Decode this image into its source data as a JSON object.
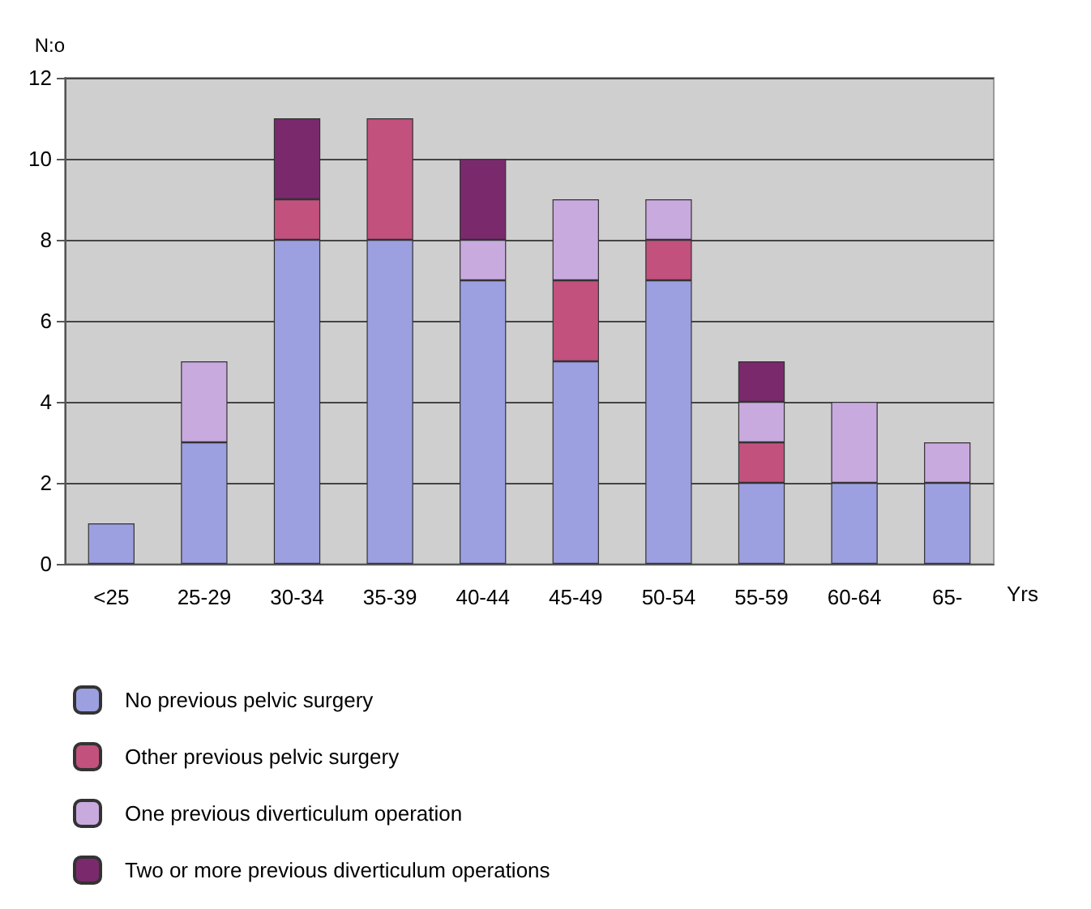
{
  "chart_data": {
    "type": "bar",
    "stacked": true,
    "ylabel": "N:o",
    "xlabel": "Yrs",
    "categories": [
      "<25",
      "25-29",
      "30-34",
      "35-39",
      "40-44",
      "45-49",
      "50-54",
      "55-59",
      "60-64",
      "65-"
    ],
    "series": [
      {
        "name": "No previous pelvic surgery",
        "color": "#9c9fe0",
        "values": [
          1,
          3,
          8,
          8,
          7,
          5,
          7,
          2,
          2,
          2
        ]
      },
      {
        "name": "Other previous pelvic surgery",
        "color": "#c2517e",
        "values": [
          0,
          0,
          1,
          3,
          0,
          2,
          1,
          1,
          0,
          0
        ]
      },
      {
        "name": "One previous diverticulum operation",
        "color": "#c9aadf",
        "values": [
          0,
          2,
          0,
          0,
          1,
          2,
          1,
          1,
          2,
          1
        ]
      },
      {
        "name": "Two or more previous diverticulum operations",
        "color": "#7a2a6c",
        "values": [
          0,
          0,
          2,
          0,
          2,
          0,
          0,
          1,
          0,
          0
        ]
      }
    ],
    "ylim": [
      0,
      12
    ],
    "yticks": [
      0,
      2,
      4,
      6,
      8,
      10,
      12
    ],
    "grid": "y",
    "legend": "bottom left"
  }
}
